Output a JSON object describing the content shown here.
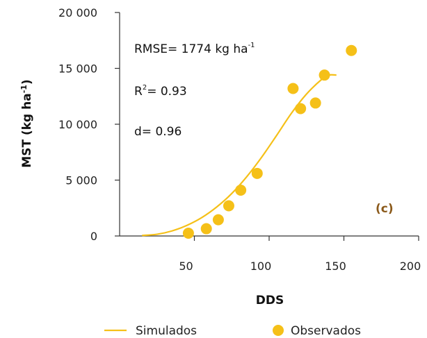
{
  "chart_data": {
    "type": "scatter",
    "xlabel": "DDS",
    "ylabel": "MST",
    "ylabel_unit": "(kg ha",
    "ylabel_unit_sup": "-1",
    "ylabel_unit_close": ")",
    "xlim": [
      0,
      200
    ],
    "ylim": [
      0,
      20000
    ],
    "x_ticks": [
      50,
      100,
      150,
      200
    ],
    "y_ticks": [
      {
        "value": 0,
        "label": "0"
      },
      {
        "value": 5000,
        "label": "5 000"
      },
      {
        "value": 10000,
        "label": "10 000"
      },
      {
        "value": 15000,
        "label": "15 000"
      },
      {
        "value": 20000,
        "label": "20 000"
      }
    ],
    "grid": false,
    "legend_position": "bottom",
    "panel_label": "(c)",
    "annotations": {
      "rmse_prefix": "RMSE= 1774 kg ha",
      "rmse_sup": "-1",
      "r2_prefix": "R",
      "r2_sup": "2",
      "r2_value": "= 0.93",
      "d": "d= 0.96"
    },
    "colors": {
      "series": "#F5C018",
      "panel_label": "#8B5A1B",
      "axis": "#333333"
    },
    "series": [
      {
        "name": "Simulados",
        "kind": "line",
        "x": [
          15,
          25,
          35,
          45,
          55,
          65,
          75,
          85,
          95,
          105,
          115,
          125,
          135,
          140,
          145
        ],
        "y": [
          50,
          150,
          450,
          950,
          1650,
          2600,
          3800,
          5300,
          7050,
          9000,
          11000,
          12700,
          14000,
          14400,
          14400
        ]
      },
      {
        "name": "Observados",
        "kind": "scatter",
        "x": [
          46,
          58,
          66,
          73,
          81,
          92,
          116,
          121,
          131,
          137,
          155
        ],
        "y": [
          250,
          650,
          1450,
          2700,
          4100,
          5600,
          13200,
          11400,
          11900,
          14400,
          16600
        ]
      }
    ]
  }
}
